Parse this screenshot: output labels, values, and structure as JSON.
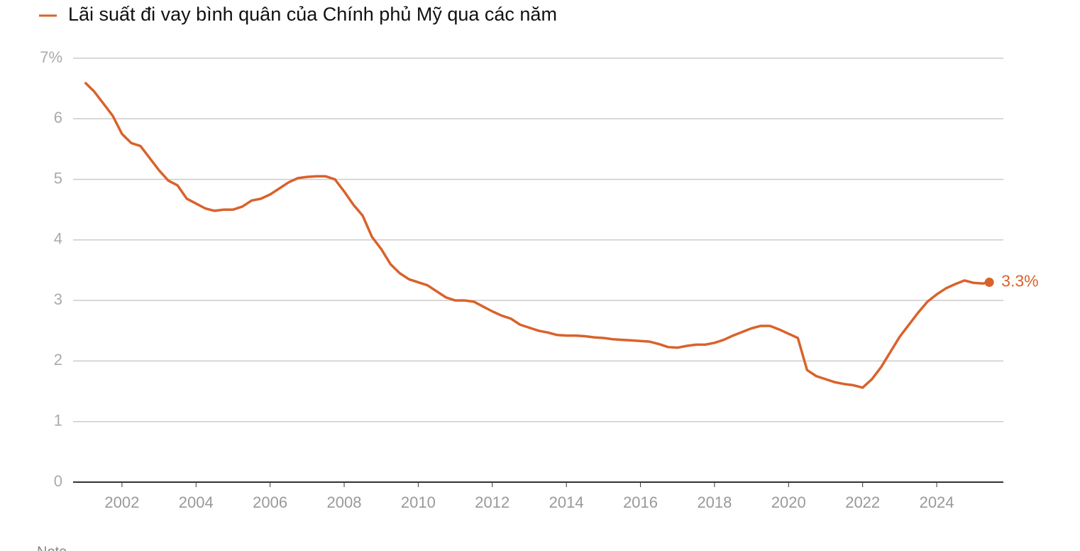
{
  "chart_data": {
    "type": "line",
    "series": [
      {
        "name": "Lãi suất đi vay bình quân của Chính phủ Mỹ qua các năm",
        "color": "#d9622b",
        "x": [
          2001.0,
          2001.25,
          2001.5,
          2001.75,
          2002.0,
          2002.25,
          2002.5,
          2002.75,
          2003.0,
          2003.25,
          2003.5,
          2003.75,
          2004.0,
          2004.25,
          2004.5,
          2004.75,
          2005.0,
          2005.25,
          2005.5,
          2005.75,
          2006.0,
          2006.25,
          2006.5,
          2006.75,
          2007.0,
          2007.25,
          2007.5,
          2007.75,
          2008.0,
          2008.25,
          2008.5,
          2008.75,
          2009.0,
          2009.25,
          2009.5,
          2009.75,
          2010.0,
          2010.25,
          2010.5,
          2010.75,
          2011.0,
          2011.25,
          2011.5,
          2011.75,
          2012.0,
          2012.25,
          2012.5,
          2012.75,
          2013.0,
          2013.25,
          2013.5,
          2013.75,
          2014.0,
          2014.25,
          2014.5,
          2014.75,
          2015.0,
          2015.25,
          2015.5,
          2015.75,
          2016.0,
          2016.25,
          2016.5,
          2016.75,
          2017.0,
          2017.25,
          2017.5,
          2017.75,
          2018.0,
          2018.25,
          2018.5,
          2018.75,
          2019.0,
          2019.25,
          2019.5,
          2019.75,
          2020.0,
          2020.25,
          2020.5,
          2020.75,
          2021.0,
          2021.25,
          2021.5,
          2021.75,
          2022.0,
          2022.25,
          2022.5,
          2022.75,
          2023.0,
          2023.25,
          2023.5,
          2023.75,
          2024.0,
          2024.25,
          2024.5,
          2024.75,
          2025.0,
          2025.25,
          2025.42
        ],
        "values": [
          6.6,
          6.45,
          6.25,
          6.05,
          5.75,
          5.6,
          5.55,
          5.35,
          5.15,
          4.98,
          4.9,
          4.68,
          4.6,
          4.52,
          4.48,
          4.5,
          4.5,
          4.55,
          4.65,
          4.68,
          4.75,
          4.85,
          4.95,
          5.02,
          5.04,
          5.05,
          5.05,
          5.0,
          4.8,
          4.58,
          4.4,
          4.05,
          3.85,
          3.6,
          3.45,
          3.35,
          3.3,
          3.25,
          3.15,
          3.05,
          3.0,
          3.0,
          2.98,
          2.9,
          2.82,
          2.75,
          2.7,
          2.6,
          2.55,
          2.5,
          2.47,
          2.43,
          2.42,
          2.42,
          2.41,
          2.39,
          2.38,
          2.36,
          2.35,
          2.34,
          2.33,
          2.32,
          2.28,
          2.23,
          2.22,
          2.25,
          2.27,
          2.27,
          2.3,
          2.35,
          2.42,
          2.48,
          2.54,
          2.58,
          2.58,
          2.52,
          2.45,
          2.38,
          1.85,
          1.75,
          1.7,
          1.65,
          1.62,
          1.6,
          1.56,
          1.7,
          1.9,
          2.15,
          2.4,
          2.6,
          2.8,
          2.98,
          3.1,
          3.2,
          3.27,
          3.33,
          3.29,
          3.28,
          3.3
        ],
        "end_label": "3.3%"
      }
    ],
    "xlim": [
      2000.68,
      2025.8
    ],
    "xticks": [
      2002,
      2004,
      2006,
      2008,
      2010,
      2012,
      2014,
      2016,
      2018,
      2020,
      2022,
      2024
    ],
    "ylim": [
      0,
      7
    ],
    "yticks": [
      0,
      1,
      2,
      3,
      4,
      5,
      6,
      {
        "value": 7,
        "label": "7%"
      }
    ],
    "grid": true,
    "note": "Note"
  }
}
